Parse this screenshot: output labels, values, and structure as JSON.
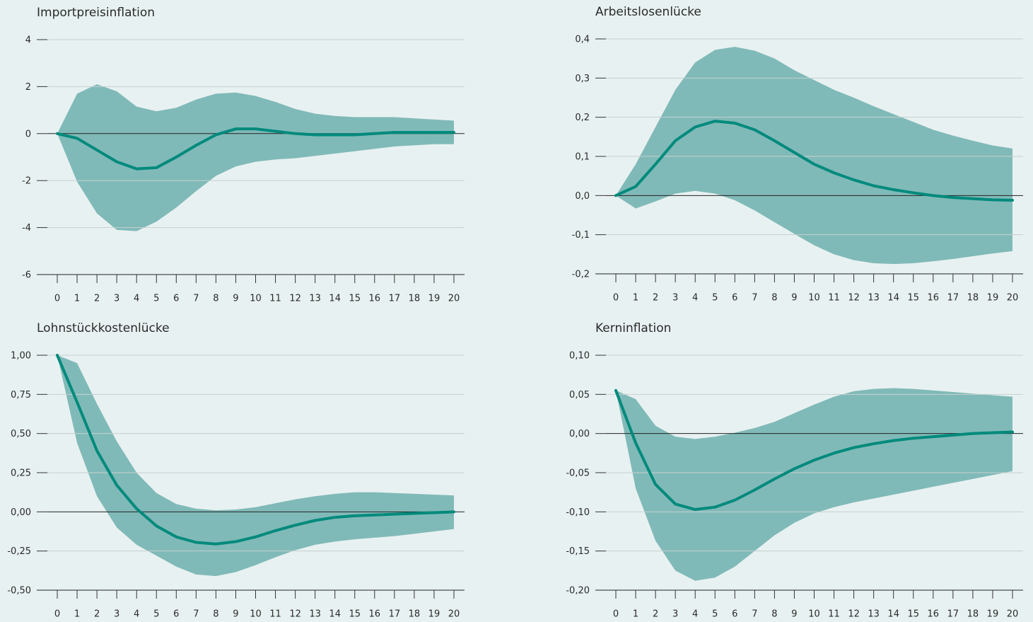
{
  "chart_data": [
    {
      "type": "line",
      "title": "Importpreisinflation",
      "x": [
        0,
        1,
        2,
        3,
        4,
        5,
        6,
        7,
        8,
        9,
        10,
        11,
        12,
        13,
        14,
        15,
        16,
        17,
        18,
        19,
        20
      ],
      "xlim": [
        0,
        20
      ],
      "xticks": [
        0,
        1,
        2,
        3,
        4,
        5,
        6,
        7,
        8,
        9,
        10,
        11,
        12,
        13,
        14,
        15,
        16,
        17,
        18,
        19,
        20
      ],
      "ylim": [
        -6,
        4
      ],
      "yticks": [
        -6,
        -4,
        -2,
        0,
        2,
        4
      ],
      "grid": true,
      "values": [
        0,
        -0.2,
        -0.7,
        -1.2,
        -1.5,
        -1.45,
        -1.0,
        -0.5,
        -0.05,
        0.2,
        0.2,
        0.1,
        0,
        -0.05,
        -0.05,
        -0.05,
        0,
        0.05,
        0.05,
        0.05,
        0.05
      ],
      "color": "#008a7c",
      "band": {
        "color": "#80bab8",
        "upper": [
          0,
          1.7,
          2.1,
          1.8,
          1.15,
          0.95,
          1.1,
          1.45,
          1.7,
          1.75,
          1.6,
          1.35,
          1.05,
          0.85,
          0.75,
          0.7,
          0.7,
          0.7,
          0.65,
          0.6,
          0.55
        ],
        "lower": [
          0,
          -2.05,
          -3.4,
          -4.1,
          -4.15,
          -3.75,
          -3.15,
          -2.45,
          -1.8,
          -1.4,
          -1.2,
          -1.1,
          -1.05,
          -0.95,
          -0.85,
          -0.75,
          -0.65,
          -0.55,
          -0.5,
          -0.45,
          -0.45
        ]
      }
    },
    {
      "type": "line",
      "title": "Arbeitslosenlücke",
      "x": [
        0,
        1,
        2,
        3,
        4,
        5,
        6,
        7,
        8,
        9,
        10,
        11,
        12,
        13,
        14,
        15,
        16,
        17,
        18,
        19,
        20
      ],
      "xlim": [
        0,
        20
      ],
      "xticks": [
        0,
        1,
        2,
        3,
        4,
        5,
        6,
        7,
        8,
        9,
        10,
        11,
        12,
        13,
        14,
        15,
        16,
        17,
        18,
        19,
        20
      ],
      "ylim": [
        -0.2,
        0.4
      ],
      "yticks": [
        {
          "value": -0.2,
          "label": "-0,2"
        },
        {
          "value": -0.1,
          "label": "-0,1"
        },
        {
          "value": 0,
          "label": "0,0"
        },
        {
          "value": 0.1,
          "label": "0,1"
        },
        {
          "value": 0.2,
          "label": "0,2"
        },
        {
          "value": 0.3,
          "label": "0,3"
        },
        {
          "value": 0.4,
          "label": "0,4"
        }
      ],
      "grid": true,
      "values": [
        0,
        0.023,
        0.08,
        0.14,
        0.175,
        0.19,
        0.185,
        0.168,
        0.14,
        0.11,
        0.08,
        0.058,
        0.04,
        0.025,
        0.015,
        0.007,
        0,
        -0.005,
        -0.008,
        -0.011,
        -0.012
      ],
      "color": "#008a7c",
      "band": {
        "color": "#80bab8",
        "upper": [
          0,
          0.08,
          0.175,
          0.27,
          0.34,
          0.372,
          0.38,
          0.37,
          0.35,
          0.32,
          0.295,
          0.27,
          0.25,
          0.228,
          0.208,
          0.188,
          0.168,
          0.153,
          0.14,
          0.128,
          0.12
        ],
        "lower": [
          0,
          -0.033,
          -0.015,
          0.005,
          0.012,
          0.005,
          -0.012,
          -0.038,
          -0.068,
          -0.098,
          -0.127,
          -0.15,
          -0.165,
          -0.173,
          -0.175,
          -0.173,
          -0.168,
          -0.162,
          -0.155,
          -0.148,
          -0.142
        ]
      }
    },
    {
      "type": "line",
      "title": "Lohnstückkostenlücke",
      "x": [
        0,
        1,
        2,
        3,
        4,
        5,
        6,
        7,
        8,
        9,
        10,
        11,
        12,
        13,
        14,
        15,
        16,
        17,
        18,
        19,
        20
      ],
      "xlim": [
        0,
        20
      ],
      "xticks": [
        0,
        1,
        2,
        3,
        4,
        5,
        6,
        7,
        8,
        9,
        10,
        11,
        12,
        13,
        14,
        15,
        16,
        17,
        18,
        19,
        20
      ],
      "ylim": [
        -0.5,
        1.0
      ],
      "yticks": [
        {
          "value": -0.5,
          "label": "-0,50"
        },
        {
          "value": -0.25,
          "label": "-0,25"
        },
        {
          "value": 0,
          "label": "0,00"
        },
        {
          "value": 0.25,
          "label": "0,25"
        },
        {
          "value": 0.5,
          "label": "0,50"
        },
        {
          "value": 0.75,
          "label": "0,75"
        },
        {
          "value": 1.0,
          "label": "1,00"
        }
      ],
      "grid": true,
      "values": [
        1.0,
        0.7,
        0.39,
        0.17,
        0.02,
        -0.09,
        -0.16,
        -0.195,
        -0.205,
        -0.19,
        -0.16,
        -0.12,
        -0.085,
        -0.055,
        -0.035,
        -0.025,
        -0.02,
        -0.015,
        -0.01,
        -0.005,
        0
      ],
      "color": "#008a7c",
      "band": {
        "color": "#80bab8",
        "upper": [
          1.0,
          0.95,
          0.69,
          0.45,
          0.25,
          0.12,
          0.05,
          0.02,
          0.01,
          0.015,
          0.03,
          0.055,
          0.08,
          0.1,
          0.115,
          0.125,
          0.125,
          0.12,
          0.115,
          0.11,
          0.105
        ],
        "lower": [
          1.0,
          0.44,
          0.1,
          -0.1,
          -0.21,
          -0.28,
          -0.35,
          -0.4,
          -0.41,
          -0.385,
          -0.34,
          -0.29,
          -0.245,
          -0.21,
          -0.19,
          -0.175,
          -0.165,
          -0.155,
          -0.14,
          -0.125,
          -0.11
        ]
      }
    },
    {
      "type": "line",
      "title": "Kerninflation",
      "x": [
        0,
        1,
        2,
        3,
        4,
        5,
        6,
        7,
        8,
        9,
        10,
        11,
        12,
        13,
        14,
        15,
        16,
        17,
        18,
        19,
        20
      ],
      "xlim": [
        0,
        20
      ],
      "xticks": [
        0,
        1,
        2,
        3,
        4,
        5,
        6,
        7,
        8,
        9,
        10,
        11,
        12,
        13,
        14,
        15,
        16,
        17,
        18,
        19,
        20
      ],
      "ylim": [
        -0.2,
        0.1
      ],
      "yticks": [
        {
          "value": -0.2,
          "label": "-0,20"
        },
        {
          "value": -0.15,
          "label": "-0,15"
        },
        {
          "value": -0.1,
          "label": "-0,10"
        },
        {
          "value": -0.05,
          "label": "-0,05"
        },
        {
          "value": 0,
          "label": "0,00"
        },
        {
          "value": 0.05,
          "label": "0,05"
        },
        {
          "value": 0.1,
          "label": "0,10"
        }
      ],
      "grid": true,
      "values": [
        0.055,
        -0.012,
        -0.065,
        -0.09,
        -0.097,
        -0.094,
        -0.085,
        -0.072,
        -0.058,
        -0.045,
        -0.034,
        -0.025,
        -0.018,
        -0.013,
        -0.009,
        -0.006,
        -0.004,
        -0.002,
        0,
        0.001,
        0.002
      ],
      "color": "#008a7c",
      "band": {
        "color": "#80bab8",
        "upper": [
          0.055,
          0.044,
          0.01,
          -0.004,
          -0.007,
          -0.004,
          0.001,
          0.007,
          0.015,
          0.026,
          0.037,
          0.047,
          0.054,
          0.057,
          0.058,
          0.057,
          0.055,
          0.053,
          0.051,
          0.049,
          0.047
        ],
        "lower": [
          0.055,
          -0.07,
          -0.137,
          -0.175,
          -0.188,
          -0.184,
          -0.17,
          -0.15,
          -0.13,
          -0.114,
          -0.102,
          -0.094,
          -0.088,
          -0.083,
          -0.078,
          -0.073,
          -0.068,
          -0.063,
          -0.058,
          -0.053,
          -0.048
        ]
      }
    }
  ]
}
